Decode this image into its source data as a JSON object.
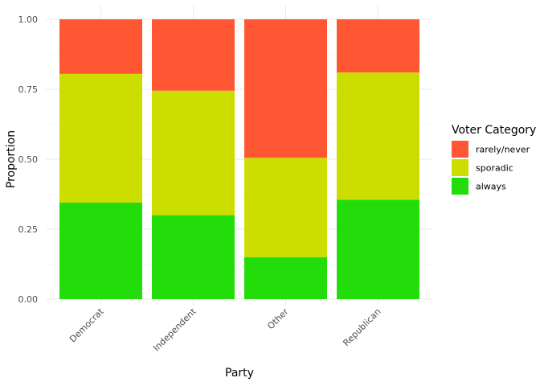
{
  "chart_data": {
    "type": "bar",
    "stacked": true,
    "categories": [
      "Democrat",
      "Independent",
      "Other",
      "Republican"
    ],
    "series": [
      {
        "name": "always",
        "color": "#22DD0A",
        "values": [
          0.345,
          0.3,
          0.15,
          0.355
        ]
      },
      {
        "name": "sporadic",
        "color": "#CCDD00",
        "values": [
          0.46,
          0.445,
          0.355,
          0.455
        ]
      },
      {
        "name": "rarely/never",
        "color": "#FF5733",
        "values": [
          0.195,
          0.255,
          0.495,
          0.19
        ]
      }
    ],
    "xlabel": "Party",
    "ylabel": "Proportion",
    "ylim": [
      0,
      1
    ],
    "yticks": [
      "0.00",
      "0.25",
      "0.50",
      "0.75",
      "1.00"
    ],
    "grid": true,
    "legend": {
      "title": "Voter Category",
      "placement": "right",
      "order": [
        "rarely/never",
        "sporadic",
        "always"
      ]
    }
  }
}
